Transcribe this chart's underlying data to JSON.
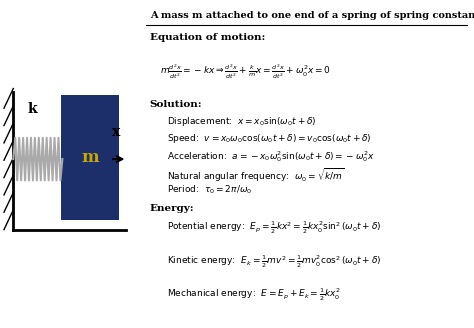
{
  "title": "A mass m attached to one end of a spring of spring constant k",
  "bg_color": "#F0C030",
  "left_bg": "#FFFFFF",
  "mass_color": "#1C2F6B",
  "mass_label_color": "#C8A800",
  "spring_color": "#AAAAAA",
  "wall_color": "#000000",
  "text_color": "#000000",
  "equation_of_motion": "Equation of motion:",
  "solution": "Solution:",
  "energy": "Energy:"
}
